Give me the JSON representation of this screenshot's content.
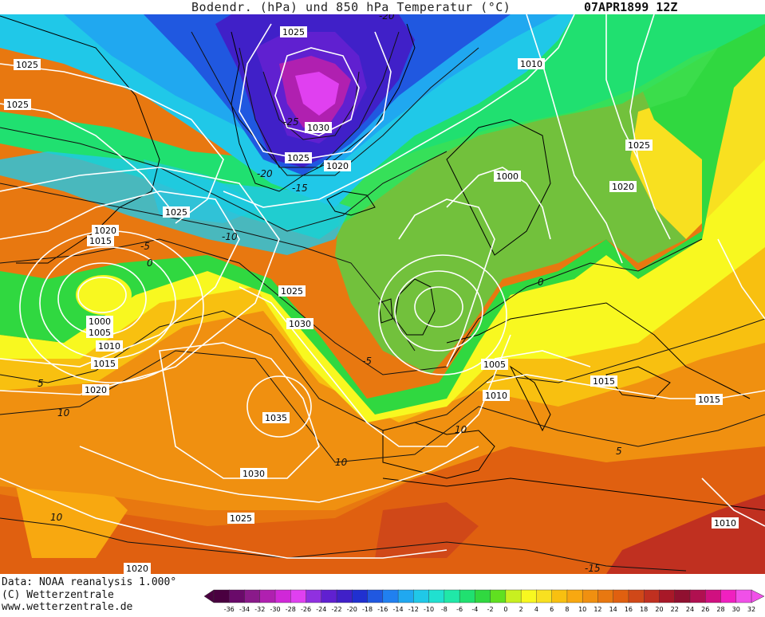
{
  "header": {
    "title": "Bodendr. (hPa) und 850 hPa Temperatur (°C)",
    "date": "07APR1899 12Z"
  },
  "footer": {
    "data_source": "Data: NOAA reanalysis 1.000°",
    "copyright": "(C) Wetterzentrale",
    "website": "www.wetterzentrale.de"
  },
  "colorbar": {
    "ticks": [
      "-36",
      "-34",
      "-32",
      "-30",
      "-28",
      "-26",
      "-24",
      "-22",
      "-20",
      "-18",
      "-16",
      "-14",
      "-12",
      "-10",
      "-8",
      "-6",
      "-4",
      "-2",
      "0",
      "2",
      "4",
      "6",
      "8",
      "10",
      "12",
      "14",
      "16",
      "18",
      "20",
      "22",
      "24",
      "26",
      "28",
      "30",
      "32"
    ],
    "colors": [
      "#4a0040",
      "#6a0a6a",
      "#8a1a8a",
      "#b020b0",
      "#d028d8",
      "#e040f0",
      "#9030e0",
      "#6020d0",
      "#4020c8",
      "#2030d0",
      "#2058e0",
      "#2080f0",
      "#20a8f0",
      "#20c8e8",
      "#20e0d0",
      "#20e8a8",
      "#20e070",
      "#30d840",
      "#60e020",
      "#c8f020",
      "#f8f820",
      "#f8e020",
      "#f8c010",
      "#f8a810",
      "#f09010",
      "#e87810",
      "#e06010",
      "#d04818",
      "#c03020",
      "#a81828",
      "#901030",
      "#b01050",
      "#d01080",
      "#f020c0",
      "#f050e8"
    ]
  },
  "map": {
    "isobar_labels": [
      {
        "text": "1025"
      },
      {
        "text": "1025"
      },
      {
        "text": "1025"
      },
      {
        "text": "1030"
      },
      {
        "text": "1025"
      },
      {
        "text": "1020"
      },
      {
        "text": "1010"
      },
      {
        "text": "1025"
      },
      {
        "text": "1020"
      },
      {
        "text": "1000"
      },
      {
        "text": "1025"
      },
      {
        "text": "1020"
      },
      {
        "text": "1015"
      },
      {
        "text": "1025"
      },
      {
        "text": "1030"
      },
      {
        "text": "1000"
      },
      {
        "text": "1005"
      },
      {
        "text": "1010"
      },
      {
        "text": "1015"
      },
      {
        "text": "1020"
      },
      {
        "text": "1035"
      },
      {
        "text": "1005"
      },
      {
        "text": "1010"
      },
      {
        "text": "1015"
      },
      {
        "text": "1015"
      },
      {
        "text": "1030"
      },
      {
        "text": "1025"
      },
      {
        "text": "1010"
      },
      {
        "text": "1020"
      }
    ],
    "temp_labels": [
      {
        "text": "-20"
      },
      {
        "text": "-25"
      },
      {
        "text": "-20"
      },
      {
        "text": "-15"
      },
      {
        "text": "-10"
      },
      {
        "text": "-5"
      },
      {
        "text": "0"
      },
      {
        "text": "-5"
      },
      {
        "text": "0"
      },
      {
        "text": "5"
      },
      {
        "text": "10"
      },
      {
        "text": "10"
      },
      {
        "text": "10"
      },
      {
        "text": "10"
      },
      {
        "text": "5"
      },
      {
        "text": "-15"
      }
    ]
  }
}
